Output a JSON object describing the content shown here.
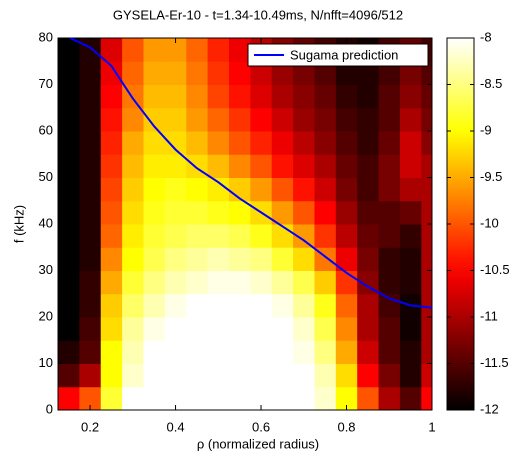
{
  "chart_data": {
    "type": "heatmap",
    "title": "GYSELA-Er-10 - t=1.34-10.49ms, N/nfft=4096/512",
    "x_label": "ρ (normalized radius)",
    "y_label": "f (kHz)",
    "colormap": "hot",
    "x": [
      0.15,
      0.2,
      0.25,
      0.3,
      0.35,
      0.4,
      0.45,
      0.5,
      0.55,
      0.6,
      0.65,
      0.7,
      0.75,
      0.8,
      0.85,
      0.9,
      0.95,
      1.0
    ],
    "y": [
      2.5,
      7.5,
      12.5,
      17.5,
      22.5,
      27.5,
      32.5,
      37.5,
      42.5,
      47.5,
      52.5,
      57.5,
      62.5,
      67.5,
      72.5,
      77.5
    ],
    "z": [
      [
        -10.5,
        -10,
        -8.8,
        -8,
        -8,
        -8,
        -8,
        -8,
        -8,
        -8,
        -8,
        -8,
        -8.2,
        -9,
        -10,
        -11,
        -11.5,
        -10.5
      ],
      [
        -11.5,
        -11,
        -9,
        -8.2,
        -8,
        -8,
        -8,
        -8,
        -8,
        -8,
        -8,
        -8,
        -8.3,
        -9.2,
        -10.5,
        -11.3,
        -11.8,
        -10.8
      ],
      [
        -11.8,
        -11.5,
        -9,
        -8.3,
        -8,
        -8,
        -8,
        -8,
        -8,
        -8,
        -8,
        -8.1,
        -8.5,
        -9.5,
        -10.8,
        -11.5,
        -11.8,
        -11
      ],
      [
        -12,
        -11.6,
        -9.2,
        -8.4,
        -8.1,
        -8,
        -8,
        -8,
        -8,
        -8,
        -8,
        -8.2,
        -8.7,
        -9.7,
        -11,
        -11.5,
        -11.9,
        -11
      ],
      [
        -12,
        -11.7,
        -9.3,
        -8.6,
        -8.3,
        -8.1,
        -8,
        -8,
        -8,
        -8,
        -8.1,
        -8.4,
        -8.9,
        -9.9,
        -11,
        -11.6,
        -11.9,
        -11
      ],
      [
        -12,
        -11.7,
        -9.5,
        -8.8,
        -8.5,
        -8.3,
        -8.2,
        -8.1,
        -8.1,
        -8.2,
        -8.4,
        -8.7,
        -9.3,
        -10.2,
        -11.2,
        -11.7,
        -11.8,
        -11
      ],
      [
        -12,
        -11.8,
        -9.7,
        -9,
        -8.7,
        -8.5,
        -8.4,
        -8.3,
        -8.4,
        -8.5,
        -8.8,
        -9.2,
        -9.8,
        -10.6,
        -11.3,
        -11.7,
        -11.8,
        -11
      ],
      [
        -12,
        -11.8,
        -9.9,
        -9.1,
        -8.8,
        -8.7,
        -8.6,
        -8.6,
        -8.7,
        -8.9,
        -9.2,
        -9.6,
        -10.2,
        -10.9,
        -11.4,
        -11.5,
        -11.7,
        -11
      ],
      [
        -12,
        -11.8,
        -10,
        -9.2,
        -8.9,
        -8.8,
        -8.8,
        -8.9,
        -9,
        -9.2,
        -9.6,
        -10,
        -10.5,
        -11.1,
        -11.5,
        -11.5,
        -11.4,
        -11
      ],
      [
        -12,
        -11.8,
        -10.1,
        -9.3,
        -9,
        -8.9,
        -9,
        -9.1,
        -9.3,
        -9.6,
        -10,
        -10.4,
        -10.8,
        -11.3,
        -11.6,
        -11.3,
        -11,
        -11
      ],
      [
        -12,
        -11.8,
        -10.2,
        -9.4,
        -9.1,
        -9.1,
        -9.2,
        -9.4,
        -9.7,
        -10,
        -10.4,
        -10.7,
        -11,
        -11.4,
        -11.6,
        -11.3,
        -10.8,
        -11
      ],
      [
        -12,
        -11.8,
        -10.3,
        -9.5,
        -9.2,
        -9.2,
        -9.4,
        -9.7,
        -10,
        -10.3,
        -10.6,
        -10.9,
        -11.2,
        -11.5,
        -11.7,
        -11.4,
        -10.8,
        -11.2
      ],
      [
        -12,
        -11.8,
        -10.4,
        -9.7,
        -9.3,
        -9.3,
        -9.6,
        -9.9,
        -10.2,
        -10.5,
        -10.8,
        -11.1,
        -11.3,
        -11.6,
        -11.7,
        -11.5,
        -11,
        -11.3
      ],
      [
        -12,
        -11.8,
        -10.5,
        -9.8,
        -9.4,
        -9.4,
        -9.7,
        -10.1,
        -10.4,
        -10.7,
        -11,
        -11.2,
        -11.4,
        -11.7,
        -11.8,
        -11.5,
        -11.2,
        -11.4
      ],
      [
        -12,
        -11.8,
        -10.6,
        -9.9,
        -9.5,
        -9.5,
        -9.8,
        -10.2,
        -10.5,
        -10.8,
        -11.1,
        -11.3,
        -11.5,
        -11.8,
        -11.8,
        -11.6,
        -11.3,
        -11.5
      ],
      [
        -12,
        -11.8,
        -10.7,
        -10,
        -9.6,
        -9.6,
        -9.9,
        -10.3,
        -10.6,
        -10.9,
        -11.2,
        -11.4,
        -11.6,
        -11.8,
        -11.9,
        -11.6,
        -11.4,
        -11.6
      ]
    ],
    "zlim": [
      -12,
      -8
    ],
    "zticks": [
      -8,
      -8.5,
      -9,
      -9.5,
      -10,
      -10.5,
      -11,
      -11.5,
      -12
    ],
    "xlim": [
      0.125,
      1
    ],
    "ylim": [
      0,
      80
    ],
    "xticks": [
      0.2,
      0.4,
      0.6,
      0.8,
      1
    ],
    "yticks": [
      0,
      10,
      20,
      30,
      40,
      50,
      60,
      70,
      80
    ],
    "legend": "upper right",
    "series": [
      {
        "name": "Sugama prediction",
        "color": "#0000ff",
        "x": [
          0.153,
          0.2,
          0.25,
          0.3,
          0.35,
          0.4,
          0.45,
          0.5,
          0.55,
          0.6,
          0.65,
          0.7,
          0.75,
          0.8,
          0.85,
          0.9,
          0.95,
          1.0
        ],
        "values": [
          80,
          78,
          74,
          67,
          61,
          56,
          52,
          49,
          45.5,
          42.5,
          39.5,
          36.5,
          33,
          29.5,
          26.5,
          24,
          22.5,
          22
        ]
      }
    ]
  }
}
